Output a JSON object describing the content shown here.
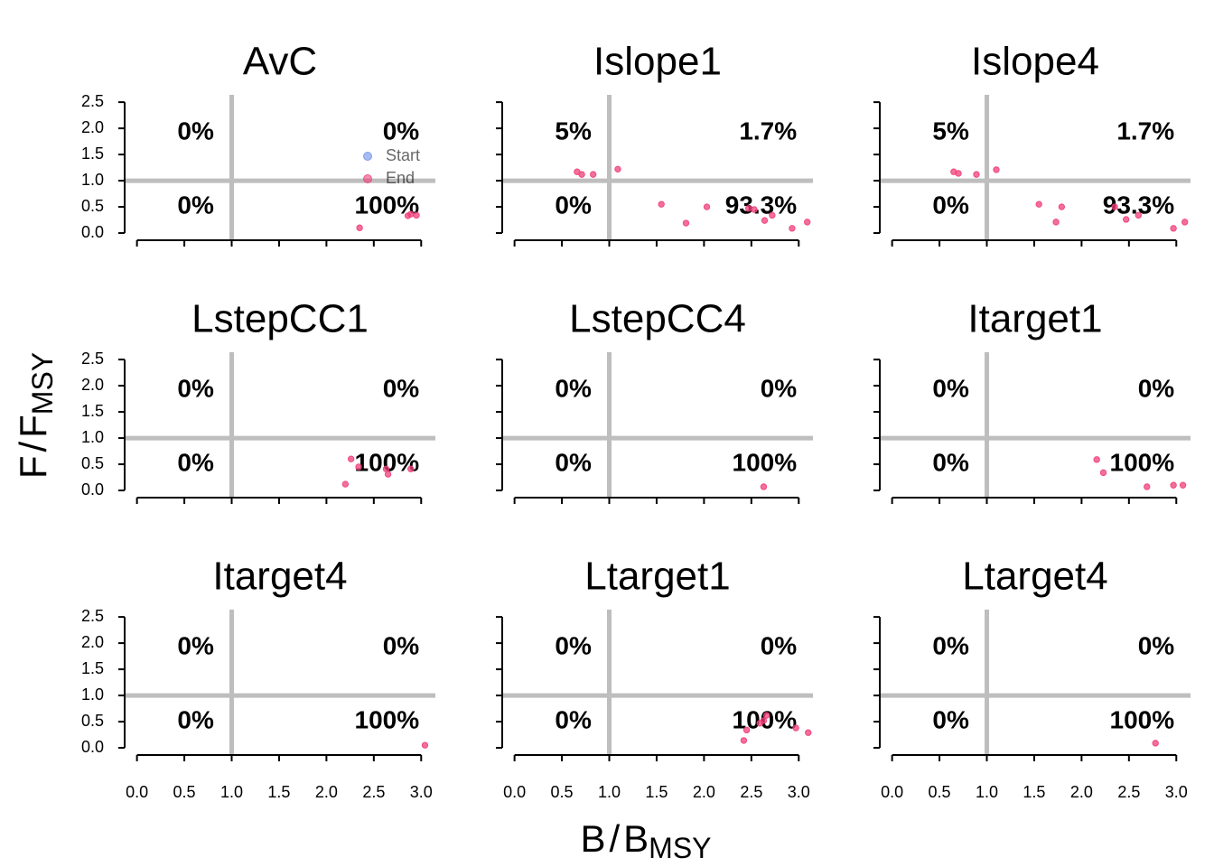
{
  "axis_labels": {
    "x": {
      "numerator": "B",
      "slash": "/",
      "denominator": "B",
      "subscript": "MSY"
    },
    "y": {
      "numerator": "F",
      "slash": "/",
      "denominator": "F",
      "subscript": "MSY"
    }
  },
  "chart_data": [
    {
      "type": "scatter",
      "title": "AvC",
      "xlim": [
        -0.13,
        3.15
      ],
      "ylim": [
        -0.12,
        2.64
      ],
      "xticks": [
        {
          "value": 0,
          "label": "0.0"
        },
        {
          "value": 0.5,
          "label": "0.5"
        },
        {
          "value": 1,
          "label": "1.0"
        },
        {
          "value": 1.5,
          "label": "1.5"
        },
        {
          "value": 2,
          "label": "2.0"
        },
        {
          "value": 2.5,
          "label": "2.5"
        },
        {
          "value": 3,
          "label": "3.0"
        }
      ],
      "yticks": [
        {
          "value": 0,
          "label": "0.0"
        },
        {
          "value": 0.5,
          "label": "0.5"
        },
        {
          "value": 1,
          "label": "1.0"
        },
        {
          "value": 1.5,
          "label": "1.5"
        },
        {
          "value": 2,
          "label": "2.0"
        },
        {
          "value": 2.5,
          "label": "2.5"
        }
      ],
      "hlines": [
        1
      ],
      "vlines": [
        1
      ],
      "quadrant_labels": [
        "0%",
        "0%",
        "0%",
        "100%"
      ],
      "legend": true,
      "series": [
        {
          "name": "Start",
          "color": "#6b8ee8",
          "x": [],
          "values": []
        },
        {
          "name": "End",
          "color": "#ef3f78",
          "x": [
            2.35,
            2.86,
            2.89,
            2.95
          ],
          "values": [
            0.1,
            0.33,
            0.36,
            0.34
          ]
        }
      ]
    },
    {
      "type": "scatter",
      "title": "Islope1",
      "xlim": [
        -0.13,
        3.15
      ],
      "ylim": [
        -0.12,
        2.64
      ],
      "xticks": [
        {
          "value": 0,
          "label": "0.0"
        },
        {
          "value": 0.5,
          "label": "0.5"
        },
        {
          "value": 1,
          "label": "1.0"
        },
        {
          "value": 1.5,
          "label": "1.5"
        },
        {
          "value": 2,
          "label": "2.0"
        },
        {
          "value": 2.5,
          "label": "2.5"
        },
        {
          "value": 3,
          "label": "3.0"
        }
      ],
      "yticks": [
        {
          "value": 0,
          "label": "0.0"
        },
        {
          "value": 0.5,
          "label": "0.5"
        },
        {
          "value": 1,
          "label": "1.0"
        },
        {
          "value": 1.5,
          "label": "1.5"
        },
        {
          "value": 2,
          "label": "2.0"
        },
        {
          "value": 2.5,
          "label": "2.5"
        }
      ],
      "hlines": [
        1
      ],
      "vlines": [
        1
      ],
      "quadrant_labels": [
        "5%",
        "1.7%",
        "0%",
        "93.3%"
      ],
      "series": [
        {
          "name": "End",
          "color": "#ef3f78",
          "x": [
            0.66,
            0.71,
            0.83,
            1.09,
            1.55,
            1.81,
            2.03,
            2.47,
            2.53,
            2.64,
            2.72,
            2.93,
            3.09
          ],
          "values": [
            1.17,
            1.12,
            1.12,
            1.22,
            0.55,
            0.19,
            0.5,
            0.47,
            0.45,
            0.24,
            0.34,
            0.09,
            0.21
          ]
        }
      ]
    },
    {
      "type": "scatter",
      "title": "Islope4",
      "xlim": [
        -0.13,
        3.15
      ],
      "ylim": [
        -0.12,
        2.64
      ],
      "xticks": [
        {
          "value": 0,
          "label": "0.0"
        },
        {
          "value": 0.5,
          "label": "0.5"
        },
        {
          "value": 1,
          "label": "1.0"
        },
        {
          "value": 1.5,
          "label": "1.5"
        },
        {
          "value": 2,
          "label": "2.0"
        },
        {
          "value": 2.5,
          "label": "2.5"
        },
        {
          "value": 3,
          "label": "3.0"
        }
      ],
      "yticks": [
        {
          "value": 0,
          "label": "0.0"
        },
        {
          "value": 0.5,
          "label": "0.5"
        },
        {
          "value": 1,
          "label": "1.0"
        },
        {
          "value": 1.5,
          "label": "1.5"
        },
        {
          "value": 2,
          "label": "2.0"
        },
        {
          "value": 2.5,
          "label": "2.5"
        }
      ],
      "hlines": [
        1
      ],
      "vlines": [
        1
      ],
      "quadrant_labels": [
        "5%",
        "1.7%",
        "0%",
        "93.3%"
      ],
      "series": [
        {
          "name": "End",
          "color": "#ef3f78",
          "x": [
            0.65,
            0.7,
            0.89,
            1.1,
            1.55,
            1.73,
            1.79,
            2.35,
            2.47,
            2.6,
            2.97,
            3.09
          ],
          "values": [
            1.17,
            1.14,
            1.12,
            1.21,
            0.55,
            0.21,
            0.5,
            0.5,
            0.26,
            0.34,
            0.09,
            0.21
          ]
        }
      ]
    },
    {
      "type": "scatter",
      "title": "LstepCC1",
      "xlim": [
        -0.13,
        3.15
      ],
      "ylim": [
        -0.12,
        2.64
      ],
      "xticks": [
        {
          "value": 0,
          "label": "0.0"
        },
        {
          "value": 0.5,
          "label": "0.5"
        },
        {
          "value": 1,
          "label": "1.0"
        },
        {
          "value": 1.5,
          "label": "1.5"
        },
        {
          "value": 2,
          "label": "2.0"
        },
        {
          "value": 2.5,
          "label": "2.5"
        },
        {
          "value": 3,
          "label": "3.0"
        }
      ],
      "yticks": [
        {
          "value": 0,
          "label": "0.0"
        },
        {
          "value": 0.5,
          "label": "0.5"
        },
        {
          "value": 1,
          "label": "1.0"
        },
        {
          "value": 1.5,
          "label": "1.5"
        },
        {
          "value": 2,
          "label": "2.0"
        },
        {
          "value": 2.5,
          "label": "2.5"
        }
      ],
      "hlines": [
        1
      ],
      "vlines": [
        1
      ],
      "quadrant_labels": [
        "0%",
        "0%",
        "0%",
        "100%"
      ],
      "series": [
        {
          "name": "End",
          "color": "#ef3f78",
          "x": [
            2.2,
            2.26,
            2.34,
            2.63,
            2.65,
            2.89
          ],
          "values": [
            0.12,
            0.6,
            0.45,
            0.41,
            0.31,
            0.41
          ]
        }
      ]
    },
    {
      "type": "scatter",
      "title": "LstepCC4",
      "xlim": [
        -0.13,
        3.15
      ],
      "ylim": [
        -0.12,
        2.64
      ],
      "xticks": [
        {
          "value": 0,
          "label": "0.0"
        },
        {
          "value": 0.5,
          "label": "0.5"
        },
        {
          "value": 1,
          "label": "1.0"
        },
        {
          "value": 1.5,
          "label": "1.5"
        },
        {
          "value": 2,
          "label": "2.0"
        },
        {
          "value": 2.5,
          "label": "2.5"
        },
        {
          "value": 3,
          "label": "3.0"
        }
      ],
      "yticks": [
        {
          "value": 0,
          "label": "0.0"
        },
        {
          "value": 0.5,
          "label": "0.5"
        },
        {
          "value": 1,
          "label": "1.0"
        },
        {
          "value": 1.5,
          "label": "1.5"
        },
        {
          "value": 2,
          "label": "2.0"
        },
        {
          "value": 2.5,
          "label": "2.5"
        }
      ],
      "hlines": [
        1
      ],
      "vlines": [
        1
      ],
      "quadrant_labels": [
        "0%",
        "0%",
        "0%",
        "100%"
      ],
      "series": [
        {
          "name": "End",
          "color": "#ef3f78",
          "x": [
            2.63
          ],
          "values": [
            0.07
          ]
        }
      ]
    },
    {
      "type": "scatter",
      "title": "Itarget1",
      "xlim": [
        -0.13,
        3.15
      ],
      "ylim": [
        -0.12,
        2.64
      ],
      "xticks": [
        {
          "value": 0,
          "label": "0.0"
        },
        {
          "value": 0.5,
          "label": "0.5"
        },
        {
          "value": 1,
          "label": "1.0"
        },
        {
          "value": 1.5,
          "label": "1.5"
        },
        {
          "value": 2,
          "label": "2.0"
        },
        {
          "value": 2.5,
          "label": "2.5"
        },
        {
          "value": 3,
          "label": "3.0"
        }
      ],
      "yticks": [
        {
          "value": 0,
          "label": "0.0"
        },
        {
          "value": 0.5,
          "label": "0.5"
        },
        {
          "value": 1,
          "label": "1.0"
        },
        {
          "value": 1.5,
          "label": "1.5"
        },
        {
          "value": 2,
          "label": "2.0"
        },
        {
          "value": 2.5,
          "label": "2.5"
        }
      ],
      "hlines": [
        1
      ],
      "vlines": [
        1
      ],
      "quadrant_labels": [
        "0%",
        "0%",
        "0%",
        "100%"
      ],
      "series": [
        {
          "name": "End",
          "color": "#ef3f78",
          "x": [
            2.16,
            2.23,
            2.69,
            2.97,
            3.07
          ],
          "values": [
            0.59,
            0.34,
            0.07,
            0.1,
            0.1
          ]
        }
      ]
    },
    {
      "type": "scatter",
      "title": "Itarget4",
      "xlim": [
        -0.13,
        3.15
      ],
      "ylim": [
        -0.12,
        2.64
      ],
      "xticks": [
        {
          "value": 0,
          "label": "0.0"
        },
        {
          "value": 0.5,
          "label": "0.5"
        },
        {
          "value": 1,
          "label": "1.0"
        },
        {
          "value": 1.5,
          "label": "1.5"
        },
        {
          "value": 2,
          "label": "2.0"
        },
        {
          "value": 2.5,
          "label": "2.5"
        },
        {
          "value": 3,
          "label": "3.0"
        }
      ],
      "yticks": [
        {
          "value": 0,
          "label": "0.0"
        },
        {
          "value": 0.5,
          "label": "0.5"
        },
        {
          "value": 1,
          "label": "1.0"
        },
        {
          "value": 1.5,
          "label": "1.5"
        },
        {
          "value": 2,
          "label": "2.0"
        },
        {
          "value": 2.5,
          "label": "2.5"
        }
      ],
      "hlines": [
        1
      ],
      "vlines": [
        1
      ],
      "quadrant_labels": [
        "0%",
        "0%",
        "0%",
        "100%"
      ],
      "series": [
        {
          "name": "End",
          "color": "#ef3f78",
          "x": [
            3.04
          ],
          "values": [
            0.05
          ]
        }
      ]
    },
    {
      "type": "scatter",
      "title": "Ltarget1",
      "xlim": [
        -0.13,
        3.15
      ],
      "ylim": [
        -0.12,
        2.64
      ],
      "xticks": [
        {
          "value": 0,
          "label": "0.0"
        },
        {
          "value": 0.5,
          "label": "0.5"
        },
        {
          "value": 1,
          "label": "1.0"
        },
        {
          "value": 1.5,
          "label": "1.5"
        },
        {
          "value": 2,
          "label": "2.0"
        },
        {
          "value": 2.5,
          "label": "2.5"
        },
        {
          "value": 3,
          "label": "3.0"
        }
      ],
      "yticks": [
        {
          "value": 0,
          "label": "0.0"
        },
        {
          "value": 0.5,
          "label": "0.5"
        },
        {
          "value": 1,
          "label": "1.0"
        },
        {
          "value": 1.5,
          "label": "1.5"
        },
        {
          "value": 2,
          "label": "2.0"
        },
        {
          "value": 2.5,
          "label": "2.5"
        }
      ],
      "hlines": [
        1
      ],
      "vlines": [
        1
      ],
      "quadrant_labels": [
        "0%",
        "0%",
        "0%",
        "100%"
      ],
      "series": [
        {
          "name": "End",
          "color": "#ef3f78",
          "x": [
            2.42,
            2.45,
            2.59,
            2.63,
            2.66,
            2.97,
            3.1
          ],
          "values": [
            0.14,
            0.34,
            0.47,
            0.52,
            0.62,
            0.38,
            0.29
          ]
        }
      ]
    },
    {
      "type": "scatter",
      "title": "Ltarget4",
      "xlim": [
        -0.13,
        3.15
      ],
      "ylim": [
        -0.12,
        2.64
      ],
      "xticks": [
        {
          "value": 0,
          "label": "0.0"
        },
        {
          "value": 0.5,
          "label": "0.5"
        },
        {
          "value": 1,
          "label": "1.0"
        },
        {
          "value": 1.5,
          "label": "1.5"
        },
        {
          "value": 2,
          "label": "2.0"
        },
        {
          "value": 2.5,
          "label": "2.5"
        },
        {
          "value": 3,
          "label": "3.0"
        }
      ],
      "yticks": [
        {
          "value": 0,
          "label": "0.0"
        },
        {
          "value": 0.5,
          "label": "0.5"
        },
        {
          "value": 1,
          "label": "1.0"
        },
        {
          "value": 1.5,
          "label": "1.5"
        },
        {
          "value": 2,
          "label": "2.0"
        },
        {
          "value": 2.5,
          "label": "2.5"
        }
      ],
      "hlines": [
        1
      ],
      "vlines": [
        1
      ],
      "quadrant_labels": [
        "0%",
        "0%",
        "0%",
        "100%"
      ],
      "series": [
        {
          "name": "End",
          "color": "#ef3f78",
          "x": [
            2.78
          ],
          "values": [
            0.09
          ]
        }
      ]
    }
  ]
}
